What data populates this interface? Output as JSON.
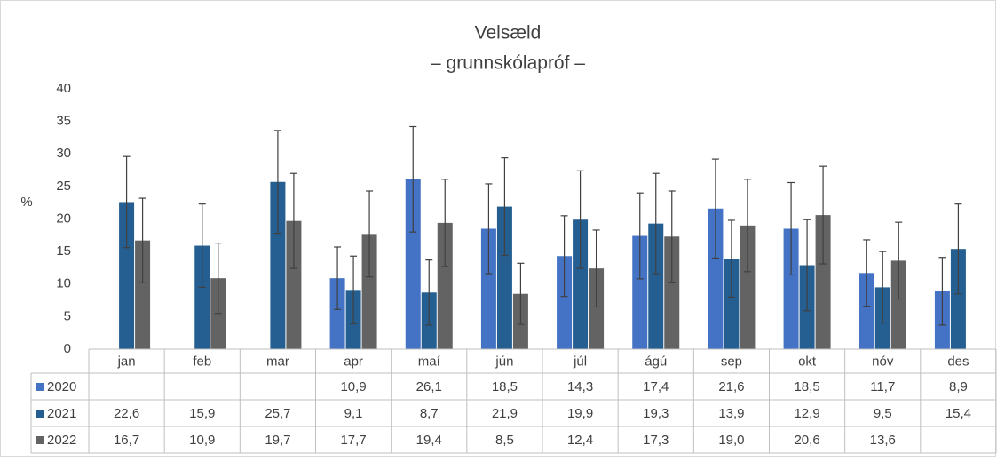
{
  "chart_data": {
    "type": "bar",
    "title": "Velsæld",
    "subtitle": "– grunnskólapróf –",
    "y_label": "%",
    "categories": [
      "jan",
      "feb",
      "mar",
      "apr",
      "maí",
      "jún",
      "júl",
      "ágú",
      "sep",
      "okt",
      "nóv",
      "des"
    ],
    "series": [
      {
        "name": "2020",
        "color": "#4472c4",
        "values": [
          null,
          null,
          null,
          10.9,
          26.1,
          18.5,
          14.3,
          17.4,
          21.6,
          18.5,
          11.7,
          8.9
        ],
        "value_labels": [
          null,
          null,
          null,
          "10,9",
          "26,1",
          "18,5",
          "14,3",
          "17,4",
          "21,6",
          "18,5",
          "11,7",
          "8,9"
        ],
        "errors": [
          null,
          null,
          null,
          4.8,
          8.1,
          6.9,
          6.2,
          6.6,
          7.6,
          7.1,
          5.1,
          5.2
        ]
      },
      {
        "name": "2021",
        "color": "#255e91",
        "values": [
          22.6,
          15.9,
          25.7,
          9.1,
          8.7,
          21.9,
          19.9,
          19.3,
          13.9,
          12.9,
          9.5,
          15.4
        ],
        "value_labels": [
          "22,6",
          "15,9",
          "25,7",
          "9,1",
          "8,7",
          "21,9",
          "19,9",
          "19,3",
          "13,9",
          "12,9",
          "9,5",
          "15,4"
        ],
        "errors": [
          7.0,
          6.4,
          7.9,
          5.2,
          5.0,
          7.5,
          7.5,
          7.7,
          5.9,
          7.0,
          5.5,
          6.9
        ]
      },
      {
        "name": "2022",
        "color": "#636363",
        "values": [
          16.7,
          10.9,
          19.7,
          17.7,
          19.4,
          8.5,
          12.4,
          17.3,
          19.0,
          20.6,
          13.6,
          null
        ],
        "value_labels": [
          "16,7",
          "10,9",
          "19,7",
          "17,7",
          "19,4",
          "8,5",
          "12,4",
          "17,3",
          "19,0",
          "20,6",
          "13,6",
          null
        ],
        "errors": [
          6.5,
          5.4,
          7.3,
          6.6,
          6.7,
          4.7,
          5.9,
          7.0,
          7.1,
          7.5,
          5.9,
          null
        ]
      }
    ],
    "ylim": [
      0,
      40
    ],
    "yticks": [
      0,
      5,
      10,
      15,
      20,
      25,
      30,
      35,
      40
    ],
    "grid": false,
    "data_table": true
  }
}
